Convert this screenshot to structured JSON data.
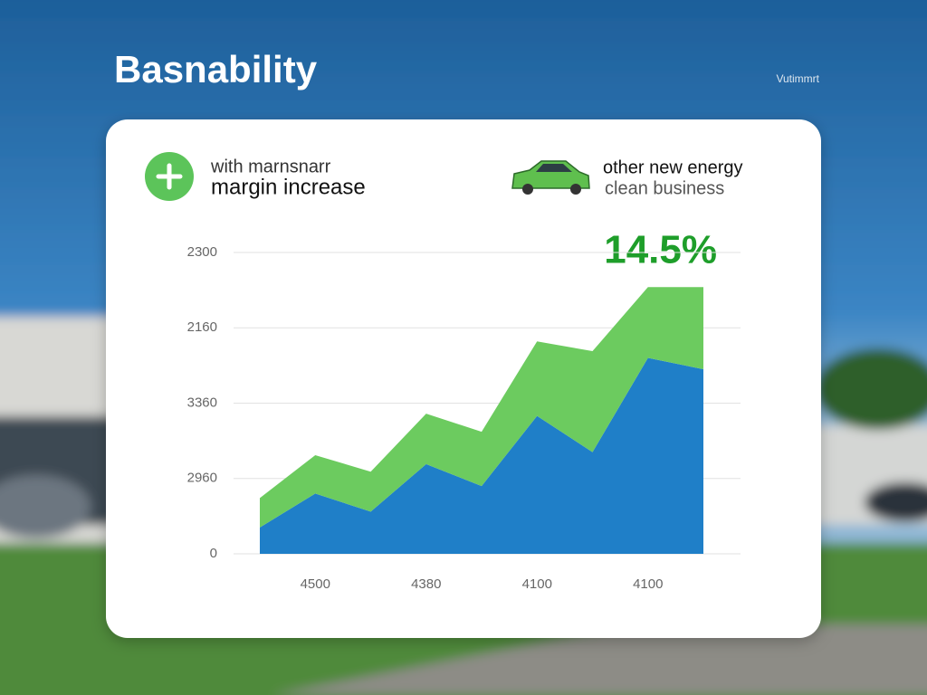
{
  "header": {
    "title": "Basnability",
    "tag": "Vutimmrt"
  },
  "chart_data": {
    "type": "stacked-area",
    "legend_items": [
      {
        "label": "with marnsnarr",
        "sublabel": "margin increase"
      },
      {
        "label": "other new energy",
        "sublabel": "clean business"
      }
    ],
    "annotation": "14.5%",
    "categories": [
      null,
      "4500",
      null,
      "4380",
      null,
      "4100",
      null,
      "4100",
      null
    ],
    "series": [
      {
        "color": "#1f7fc8",
        "values": [
          0.35,
          0.8,
          0.56,
          1.19,
          0.9,
          1.83,
          1.35,
          2.6,
          2.45
        ]
      },
      {
        "color": "#6ccb5f",
        "values": [
          0.39,
          0.51,
          0.53,
          0.67,
          0.72,
          0.99,
          1.34,
          0.94,
          1.09
        ]
      }
    ],
    "ylim": [
      0,
      4
    ],
    "yticks": [
      {
        "value": 0,
        "label": "0"
      },
      {
        "value": 1,
        "label": "2960"
      },
      {
        "value": 2,
        "label": "3360"
      },
      {
        "value": 3,
        "label": "2160"
      },
      {
        "value": 4,
        "label": "2300"
      }
    ],
    "grid": true
  }
}
